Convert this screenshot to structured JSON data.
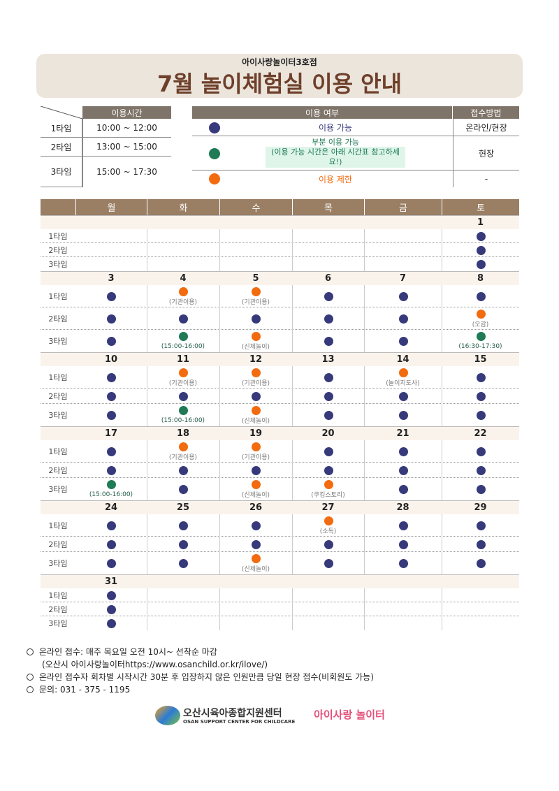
{
  "header": {
    "subtitle": "아이사랑놀이터3호점",
    "title": "7월 놀이체험실 이용 안내"
  },
  "time_table": {
    "header": "이용시간",
    "rows": [
      {
        "label": "1타임",
        "time": "10:00 ~ 12:00"
      },
      {
        "label": "2타임",
        "time": "13:00 ~ 15:00"
      },
      {
        "label": "3타임",
        "time": "15:00 ~ 17:30"
      }
    ]
  },
  "legend_table": {
    "headers": [
      "이용 여부",
      "접수방법"
    ],
    "rows": [
      {
        "color": "#363a7a",
        "label": "이용 가능",
        "method": "온라인/현장"
      },
      {
        "color": "#1f7a55",
        "label": "부분 이용 가능",
        "note": "(이용 가능 시간은 아래 시간표 참고하세요!)",
        "method": "현장"
      },
      {
        "color": "#f26b0f",
        "label": "이용 제한",
        "method": "-"
      }
    ]
  },
  "calendar": {
    "weekdays": [
      "월",
      "화",
      "수",
      "목",
      "금",
      "토"
    ],
    "time_labels": [
      "1타임",
      "2타임",
      "3타임"
    ],
    "weeks": [
      [
        null,
        null,
        null,
        null,
        null,
        {
          "date": 1,
          "slots": [
            "#363a7a",
            "#363a7a",
            "#363a7a"
          ]
        }
      ],
      [
        {
          "date": 3,
          "slots": [
            "#363a7a",
            "#363a7a",
            "#363a7a"
          ]
        },
        {
          "date": 4,
          "slots": [
            "#f26b0f",
            "#363a7a",
            "#1f7a55"
          ],
          "notes": [
            "(기관이용)",
            null,
            "(15:00-16:00)"
          ]
        },
        {
          "date": 5,
          "slots": [
            "#f26b0f",
            "#363a7a",
            "#f26b0f"
          ],
          "notes": [
            "(기관이용)",
            null,
            "(신체놀이)"
          ]
        },
        {
          "date": 6,
          "slots": [
            "#363a7a",
            "#363a7a",
            "#363a7a"
          ]
        },
        {
          "date": 7,
          "slots": [
            "#363a7a",
            "#363a7a",
            "#363a7a"
          ]
        },
        {
          "date": 8,
          "slots": [
            "#363a7a",
            "#f26b0f",
            "#1f7a55"
          ],
          "notes": [
            null,
            "(오감)",
            "(16:30-17:30)"
          ]
        }
      ],
      [
        {
          "date": 10,
          "slots": [
            "#363a7a",
            "#363a7a",
            "#363a7a"
          ]
        },
        {
          "date": 11,
          "slots": [
            "#f26b0f",
            "#363a7a",
            "#1f7a55"
          ],
          "notes": [
            "(기관이용)",
            null,
            "(15:00-16:00)"
          ]
        },
        {
          "date": 12,
          "slots": [
            "#f26b0f",
            "#363a7a",
            "#f26b0f"
          ],
          "notes": [
            "(기관이용)",
            null,
            "(신체놀이)"
          ]
        },
        {
          "date": 13,
          "slots": [
            "#363a7a",
            "#363a7a",
            "#363a7a"
          ]
        },
        {
          "date": 14,
          "slots": [
            "#f26b0f",
            "#363a7a",
            "#363a7a"
          ],
          "notes": [
            "(놀이지도사)",
            null,
            null
          ]
        },
        {
          "date": 15,
          "slots": [
            "#363a7a",
            "#363a7a",
            "#363a7a"
          ]
        }
      ],
      [
        {
          "date": 17,
          "slots": [
            "#363a7a",
            "#363a7a",
            "#1f7a55"
          ],
          "notes": [
            null,
            null,
            "(15:00-16:00)"
          ]
        },
        {
          "date": 18,
          "slots": [
            "#f26b0f",
            "#363a7a",
            "#363a7a"
          ],
          "notes": [
            "(기관이용)",
            null,
            null
          ]
        },
        {
          "date": 19,
          "slots": [
            "#f26b0f",
            "#363a7a",
            "#f26b0f"
          ],
          "notes": [
            "(기관이용)",
            null,
            "(신체놀이)"
          ]
        },
        {
          "date": 20,
          "slots": [
            "#363a7a",
            "#363a7a",
            "#f26b0f"
          ],
          "notes": [
            null,
            null,
            "(쿠킹스토리)"
          ]
        },
        {
          "date": 21,
          "slots": [
            "#363a7a",
            "#363a7a",
            "#363a7a"
          ]
        },
        {
          "date": 22,
          "slots": [
            "#363a7a",
            "#363a7a",
            "#363a7a"
          ]
        }
      ],
      [
        {
          "date": 24,
          "slots": [
            "#363a7a",
            "#363a7a",
            "#363a7a"
          ]
        },
        {
          "date": 25,
          "slots": [
            "#363a7a",
            "#363a7a",
            "#363a7a"
          ]
        },
        {
          "date": 26,
          "slots": [
            "#363a7a",
            "#363a7a",
            "#f26b0f"
          ],
          "notes": [
            null,
            null,
            "(신체놀이)"
          ]
        },
        {
          "date": 27,
          "slots": [
            "#f26b0f",
            "#363a7a",
            "#363a7a"
          ],
          "notes": [
            "(소독)",
            null,
            null
          ]
        },
        {
          "date": 28,
          "slots": [
            "#363a7a",
            "#363a7a",
            "#363a7a"
          ]
        },
        {
          "date": 29,
          "slots": [
            "#363a7a",
            "#363a7a",
            "#363a7a"
          ]
        }
      ],
      [
        {
          "date": 31,
          "slots": [
            "#363a7a",
            "#363a7a",
            "#363a7a"
          ]
        },
        null,
        null,
        null,
        null,
        null
      ]
    ]
  },
  "notes": [
    {
      "text": "온라인 접수: 매주 목요일 오전 10시~ 선착순 마감",
      "sub": "(오산시 아이사랑놀이터https://www.osanchild.or.kr/ilove/)"
    },
    {
      "text": "온라인 접수자 회차별 시작시간 30분 후 입장하지 않은 인원만큼 당일 현장 접수(비회원도 가능)"
    },
    {
      "text": "문의: 031 - 375 - 1195"
    }
  ],
  "logos": {
    "center": "오산시육아종합지원센터",
    "center_en": "OSAN SUPPORT CENTER FOR CHILDCARE",
    "playground": "아이사랑 놀이터"
  }
}
